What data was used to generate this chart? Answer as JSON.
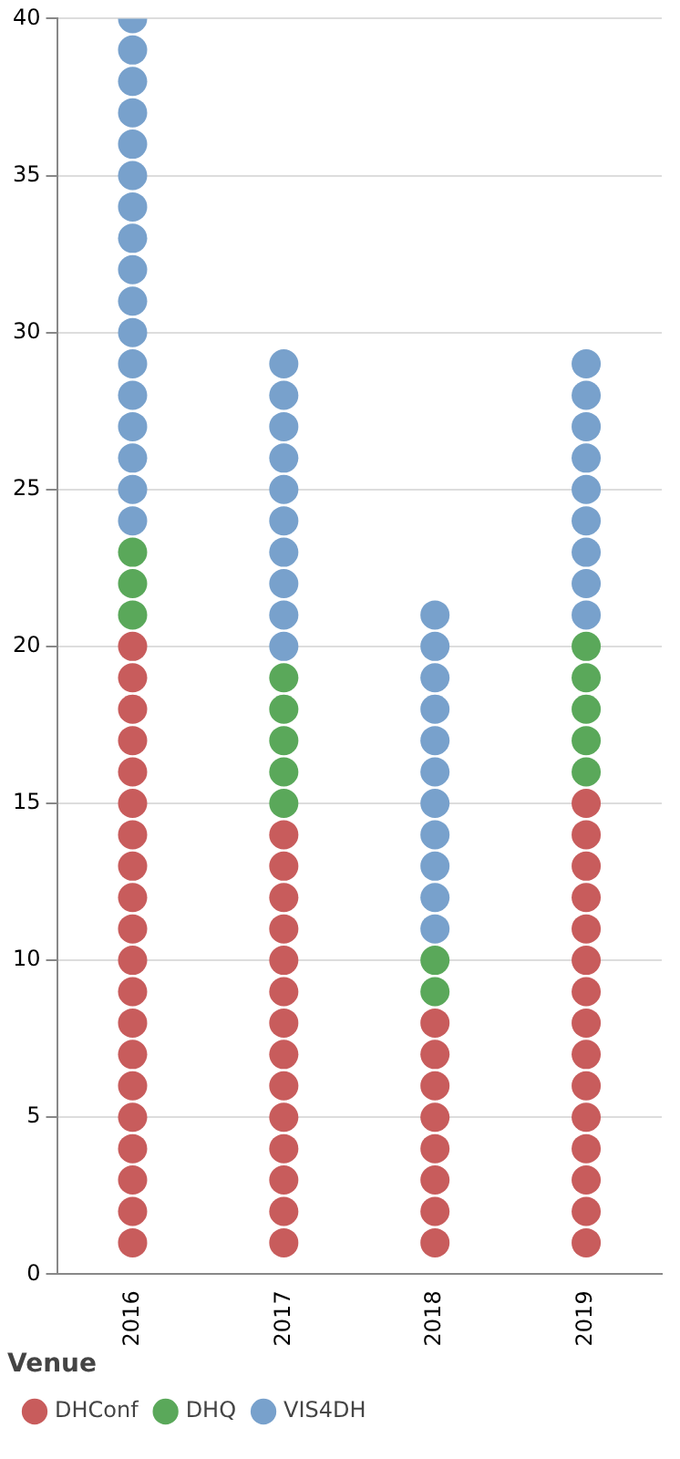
{
  "chart_data": {
    "type": "scatter",
    "xlim": [
      2015.5,
      2019.5
    ],
    "xticks": [
      2016,
      2017,
      2018,
      2019
    ],
    "ylim": [
      0,
      40
    ],
    "yticks": [
      0,
      5,
      10,
      15,
      20,
      25,
      30,
      35,
      40
    ],
    "grid": "y",
    "legend": "bottom",
    "legend_title": "Venue",
    "marker": "circle",
    "series": [
      {
        "name": "DHConf",
        "color": "#c85c5c",
        "x": [
          2016,
          2016,
          2016,
          2016,
          2016,
          2016,
          2016,
          2016,
          2016,
          2016,
          2016,
          2016,
          2016,
          2016,
          2016,
          2016,
          2016,
          2016,
          2016,
          2016,
          2017,
          2017,
          2017,
          2017,
          2017,
          2017,
          2017,
          2017,
          2017,
          2017,
          2017,
          2017,
          2017,
          2017,
          2018,
          2018,
          2018,
          2018,
          2018,
          2018,
          2018,
          2018,
          2019,
          2019,
          2019,
          2019,
          2019,
          2019,
          2019,
          2019,
          2019,
          2019,
          2019,
          2019,
          2019,
          2019,
          2019
        ],
        "values": [
          1,
          2,
          3,
          4,
          5,
          6,
          7,
          8,
          9,
          10,
          11,
          12,
          13,
          14,
          15,
          16,
          17,
          18,
          19,
          20,
          1,
          2,
          3,
          4,
          5,
          6,
          7,
          8,
          9,
          10,
          11,
          12,
          13,
          14,
          1,
          2,
          3,
          4,
          5,
          6,
          7,
          8,
          1,
          2,
          3,
          4,
          5,
          6,
          7,
          8,
          9,
          10,
          11,
          12,
          13,
          14,
          15
        ]
      },
      {
        "name": "DHQ",
        "color": "#5aa85a",
        "x": [
          2016,
          2016,
          2016,
          2017,
          2017,
          2017,
          2017,
          2017,
          2018,
          2018,
          2019,
          2019,
          2019,
          2019,
          2019
        ],
        "values": [
          21,
          22,
          23,
          15,
          16,
          17,
          18,
          19,
          9,
          10,
          16,
          17,
          18,
          19,
          20
        ]
      },
      {
        "name": "VIS4DH",
        "color": "#78a1cc",
        "x": [
          2016,
          2016,
          2016,
          2016,
          2016,
          2016,
          2016,
          2016,
          2016,
          2016,
          2016,
          2016,
          2016,
          2016,
          2016,
          2016,
          2016,
          2017,
          2017,
          2017,
          2017,
          2017,
          2017,
          2017,
          2017,
          2017,
          2017,
          2018,
          2018,
          2018,
          2018,
          2018,
          2018,
          2018,
          2018,
          2018,
          2018,
          2018,
          2019,
          2019,
          2019,
          2019,
          2019,
          2019,
          2019,
          2019,
          2019
        ],
        "values": [
          24,
          25,
          26,
          27,
          28,
          29,
          30,
          31,
          32,
          33,
          34,
          35,
          36,
          37,
          38,
          39,
          40,
          20,
          21,
          22,
          23,
          24,
          25,
          26,
          27,
          28,
          29,
          11,
          12,
          13,
          14,
          15,
          16,
          17,
          18,
          19,
          20,
          21,
          21,
          22,
          23,
          24,
          25,
          26,
          27,
          28,
          29
        ]
      }
    ]
  }
}
